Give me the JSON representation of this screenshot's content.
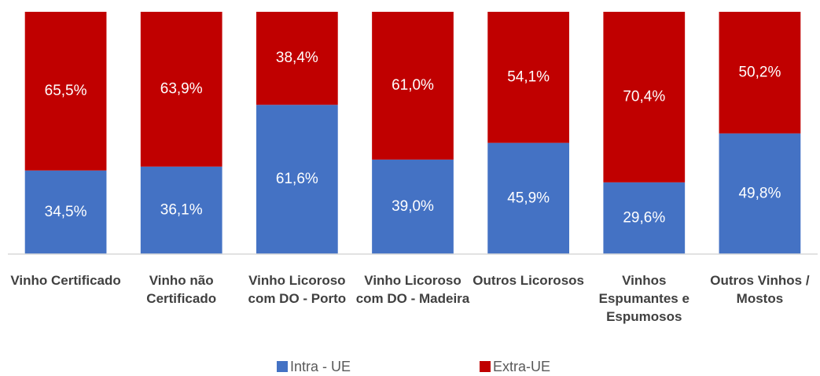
{
  "chart_data": {
    "type": "stacked_bar",
    "categories": [
      "Vinho Certificado",
      "Vinho não Certificado",
      "Vinho Licoroso com DO - Porto",
      "Vinho Licoroso com DO - Madeira",
      "Outros Licorosos",
      "Vinhos Espumantes e Espumosos",
      "Outros Vinhos / Mostos"
    ],
    "series": [
      {
        "name": "Intra - UE",
        "color": "#4472c4",
        "values": [
          34.5,
          36.1,
          61.6,
          39.0,
          45.9,
          29.6,
          49.8
        ],
        "value_labels": [
          "34,5%",
          "36,1%",
          "61,6%",
          "39,0%",
          "45,9%",
          "29,6%",
          "49,8%"
        ]
      },
      {
        "name": "Extra-UE",
        "color": "#c00000",
        "values": [
          65.5,
          63.9,
          38.4,
          61.0,
          54.1,
          70.4,
          50.2
        ],
        "value_labels": [
          "65,5%",
          "63,9%",
          "38,4%",
          "61,0%",
          "54,1%",
          "70,4%",
          "50,2%"
        ]
      }
    ],
    "ylim": [
      0,
      100
    ],
    "legend": "bottom"
  }
}
